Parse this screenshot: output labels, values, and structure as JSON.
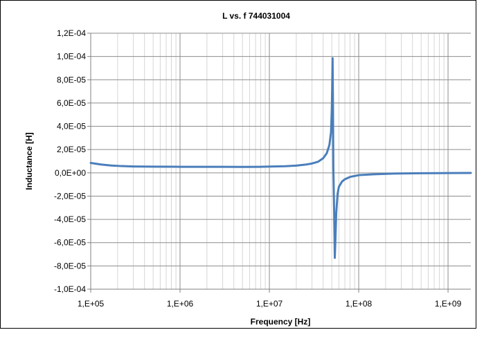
{
  "chart_data": {
    "type": "line",
    "title": "L vs. f 744031004",
    "xlabel": "Frequency [Hz]",
    "ylabel": "Inductance [H]",
    "x_scale": "log",
    "xlim": [
      100000,
      1800000000
    ],
    "ylim": [
      -0.0001,
      0.00012
    ],
    "grid": true,
    "legend": "none",
    "line_color": "#4a7ebb",
    "x_ticks": [
      {
        "value": 100000,
        "label": "1,E+05"
      },
      {
        "value": 1000000,
        "label": "1,E+06"
      },
      {
        "value": 10000000,
        "label": "1,E+07"
      },
      {
        "value": 100000000,
        "label": "1,E+08"
      },
      {
        "value": 1000000000,
        "label": "1,E+09"
      }
    ],
    "y_ticks": [
      {
        "value": 0.00012,
        "label": "1,2E-04"
      },
      {
        "value": 0.0001,
        "label": "1,0E-04"
      },
      {
        "value": 8e-05,
        "label": "8,0E-05"
      },
      {
        "value": 6e-05,
        "label": "6,0E-05"
      },
      {
        "value": 4e-05,
        "label": "4,0E-05"
      },
      {
        "value": 2e-05,
        "label": "2,0E-05"
      },
      {
        "value": 0,
        "label": "0,0E+00"
      },
      {
        "value": -2e-05,
        "label": "-2,0E-05"
      },
      {
        "value": -4e-05,
        "label": "-4,0E-05"
      },
      {
        "value": -6e-05,
        "label": "-6,0E-05"
      },
      {
        "value": -8e-05,
        "label": "-8,0E-05"
      },
      {
        "value": -0.0001,
        "label": "-1,0E-04"
      }
    ],
    "series": [
      {
        "x": [
          100000,
          130000,
          170000,
          220000,
          300000,
          500000,
          1000000,
          2000000,
          3000000,
          5000000,
          8000000,
          10000000,
          15000000,
          20000000,
          25000000,
          30000000,
          35000000,
          40000000,
          44000000,
          47000000,
          49000000,
          50000000,
          50500000,
          51000000,
          51500000,
          52000000,
          53000000,
          54000000,
          55000000,
          56000000,
          58000000,
          60000000,
          65000000,
          70000000,
          80000000,
          100000000,
          150000000,
          250000000,
          500000000,
          1000000000,
          1800000000
        ],
        "y": [
          8.5e-06,
          7.2e-06,
          6.3e-06,
          5.8e-06,
          5.5e-06,
          5.3e-06,
          5.2e-06,
          5.2e-06,
          5.2e-06,
          5.1e-06,
          5.2e-06,
          5.4e-06,
          5.7e-06,
          6.2e-06,
          7e-06,
          8e-06,
          9.5e-06,
          1.25e-05,
          1.7e-05,
          2.4e-05,
          3.5e-05,
          5.5e-05,
          7.5e-05,
          9.85e-05,
          6e-05,
          5e-06,
          -3e-05,
          -7.3e-05,
          -5.5e-05,
          -3.5e-05,
          -1.8e-05,
          -1.2e-05,
          -7.5e-06,
          -5.5e-06,
          -3.5e-06,
          -2e-06,
          -1.2e-06,
          -6e-07,
          -3e-07,
          -2e-07,
          -1e-07
        ]
      }
    ]
  }
}
